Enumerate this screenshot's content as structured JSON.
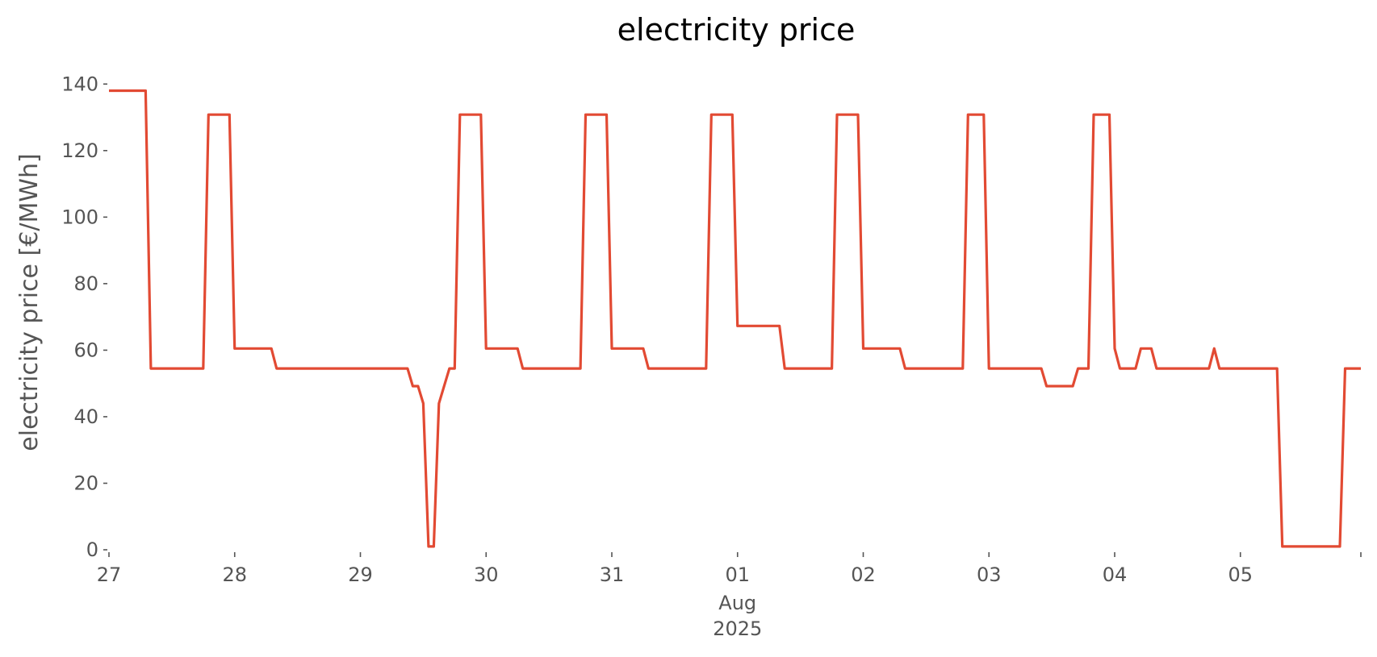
{
  "chart_data": {
    "type": "line",
    "title": "electricity price",
    "xlabel": "",
    "ylabel": "electricity price [€/MWh]",
    "ylim": [
      0,
      142
    ],
    "xlim": [
      "2025-07-27T00:00",
      "2025-08-05T23:00"
    ],
    "grid": false,
    "legend": "none",
    "line_color": "#E24A33",
    "yticks": [
      0,
      20,
      40,
      60,
      80,
      100,
      120,
      140
    ],
    "xticks": [
      {
        "date": "2025-07-27",
        "label": "27"
      },
      {
        "date": "2025-07-28",
        "label": "28"
      },
      {
        "date": "2025-07-29",
        "label": "29"
      },
      {
        "date": "2025-07-30",
        "label": "30"
      },
      {
        "date": "2025-07-31",
        "label": "31"
      },
      {
        "date": "2025-08-01",
        "label": "01",
        "sub1": "Aug",
        "sub2": "2025"
      },
      {
        "date": "2025-08-02",
        "label": "02"
      },
      {
        "date": "2025-08-03",
        "label": "03"
      },
      {
        "date": "2025-08-04",
        "label": "04"
      },
      {
        "date": "2025-08-05",
        "label": "05"
      }
    ],
    "series": [
      {
        "x": [
          "2025-07-27T00:00",
          "2025-07-27T07:00",
          "2025-07-27T08:00",
          "2025-07-27T18:00",
          "2025-07-27T19:00",
          "2025-07-27T23:00",
          "2025-07-28T00:00",
          "2025-07-28T07:00",
          "2025-07-28T08:00",
          "2025-07-29T09:00",
          "2025-07-29T10:00",
          "2025-07-29T11:00",
          "2025-07-29T12:00",
          "2025-07-29T13:00",
          "2025-07-29T14:00",
          "2025-07-29T15:00",
          "2025-07-29T17:00",
          "2025-07-29T18:00",
          "2025-07-29T19:00",
          "2025-07-29T23:00",
          "2025-07-30T00:00",
          "2025-07-30T06:00",
          "2025-07-30T07:00",
          "2025-07-30T18:00",
          "2025-07-30T19:00",
          "2025-07-30T23:00",
          "2025-07-31T00:00",
          "2025-07-31T06:00",
          "2025-07-31T07:00",
          "2025-07-31T18:00",
          "2025-07-31T19:00",
          "2025-07-31T23:00",
          "2025-08-01T00:00",
          "2025-08-01T08:00",
          "2025-08-01T09:00",
          "2025-08-01T18:00",
          "2025-08-01T19:00",
          "2025-08-01T23:00",
          "2025-08-02T00:00",
          "2025-08-02T07:00",
          "2025-08-02T08:00",
          "2025-08-02T19:00",
          "2025-08-02T20:00",
          "2025-08-02T23:00",
          "2025-08-03T00:00",
          "2025-08-03T10:00",
          "2025-08-03T11:00",
          "2025-08-03T16:00",
          "2025-08-03T17:00",
          "2025-08-03T19:00",
          "2025-08-03T20:00",
          "2025-08-03T23:00",
          "2025-08-04T00:00",
          "2025-08-04T01:00",
          "2025-08-04T04:00",
          "2025-08-04T05:00",
          "2025-08-04T07:00",
          "2025-08-04T08:00",
          "2025-08-04T18:00",
          "2025-08-04T19:00",
          "2025-08-04T20:00",
          "2025-08-05T07:00",
          "2025-08-05T08:00",
          "2025-08-05T19:00",
          "2025-08-05T20:00",
          "2025-08-05T23:00"
        ],
        "values": [
          138,
          138,
          54.5,
          54.5,
          130.8,
          130.8,
          60.5,
          60.5,
          54.5,
          54.5,
          49.2,
          49.2,
          44,
          1,
          1,
          44,
          54.5,
          54.5,
          130.8,
          130.8,
          60.5,
          60.5,
          54.5,
          54.5,
          130.8,
          130.8,
          60.5,
          60.5,
          54.5,
          54.5,
          130.8,
          130.8,
          67.3,
          67.3,
          54.5,
          54.5,
          130.8,
          130.8,
          60.5,
          60.5,
          54.5,
          54.5,
          130.8,
          130.8,
          54.5,
          54.5,
          49.2,
          49.2,
          54.5,
          54.5,
          130.8,
          130.8,
          60.5,
          54.5,
          54.5,
          60.5,
          60.5,
          54.5,
          54.5,
          60.5,
          54.5,
          54.5,
          1,
          1,
          54.5,
          54.5
        ]
      }
    ]
  }
}
